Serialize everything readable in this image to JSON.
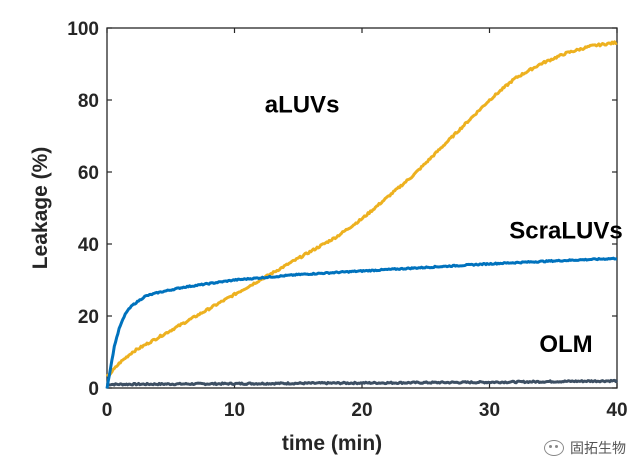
{
  "chart_data": {
    "type": "line",
    "title": "",
    "xlabel": "time (min)",
    "ylabel": "Leakage (%)",
    "xlim": [
      0,
      40
    ],
    "ylim": [
      0,
      100
    ],
    "xticks": [
      0,
      10,
      20,
      30,
      40
    ],
    "yticks": [
      0,
      20,
      40,
      60,
      80,
      100
    ],
    "grid": false,
    "series": [
      {
        "name": "aLUVs",
        "color": "#EDB120",
        "x": [
          0,
          0.5,
          1,
          2,
          3,
          4,
          5,
          6,
          8,
          10,
          12,
          14,
          16,
          18,
          20,
          22,
          24,
          26,
          28,
          30,
          32,
          34,
          36,
          38,
          40
        ],
        "y": [
          3,
          5,
          7,
          10,
          12,
          14,
          16,
          18,
          22,
          26,
          30,
          34,
          38,
          42,
          47,
          53,
          59,
          66,
          73,
          80,
          86,
          90,
          93,
          95,
          96
        ]
      },
      {
        "name": "ScraLUVs",
        "color": "#0072BD",
        "x": [
          0,
          0.3,
          0.6,
          1,
          1.5,
          2,
          3,
          4,
          6,
          8,
          10,
          15,
          20,
          25,
          30,
          35,
          40
        ],
        "y": [
          0,
          6,
          12,
          17,
          21,
          23,
          25.5,
          26.5,
          28,
          29,
          30,
          31.5,
          32.5,
          33.5,
          34.5,
          35.3,
          36
        ]
      },
      {
        "name": "OLM",
        "color": "#3D4F63",
        "x": [
          0,
          5,
          10,
          15,
          20,
          25,
          30,
          35,
          40
        ],
        "y": [
          1,
          1.1,
          1.2,
          1.3,
          1.4,
          1.5,
          1.6,
          1.8,
          2
        ]
      }
    ]
  },
  "watermark": {
    "text": "固拓生物"
  }
}
